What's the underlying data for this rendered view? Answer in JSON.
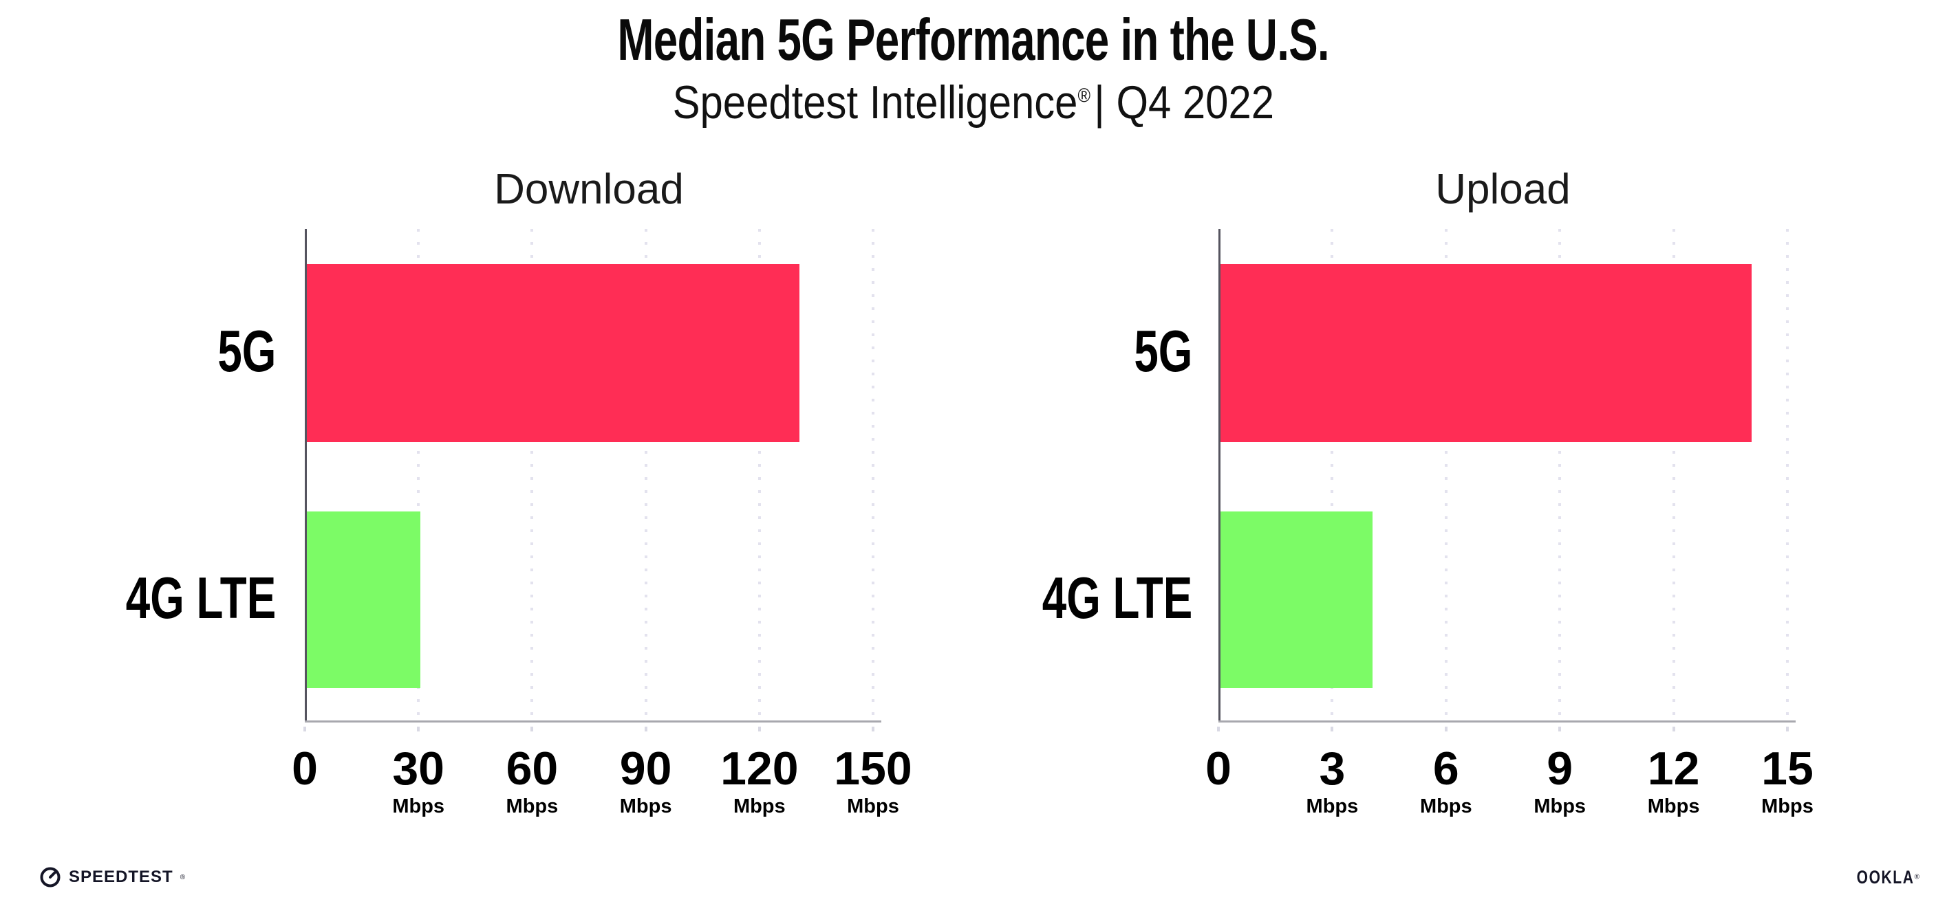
{
  "header": {
    "title": "Median 5G Performance in the U.S.",
    "subtitle_brand": "Speedtest Intelligence",
    "subtitle_reg": "®",
    "subtitle_rest": "| Q4 2022"
  },
  "chart_data": [
    {
      "type": "bar",
      "orientation": "horizontal",
      "title": "Download",
      "categories": [
        "5G",
        "4G LTE"
      ],
      "values": [
        130,
        30
      ],
      "unit": "Mbps",
      "xlim": [
        0,
        150
      ],
      "xticks": [
        0,
        30,
        60,
        90,
        120,
        150
      ],
      "grid": "dotted-vertical",
      "legend": "none"
    },
    {
      "type": "bar",
      "orientation": "horizontal",
      "title": "Upload",
      "categories": [
        "5G",
        "4G LTE"
      ],
      "values": [
        14,
        4
      ],
      "unit": "Mbps",
      "xlim": [
        0,
        15
      ],
      "xticks": [
        0,
        3,
        6,
        9,
        12,
        15
      ],
      "grid": "dotted-vertical",
      "legend": "none"
    }
  ],
  "colors": {
    "series": [
      "#FF2D55",
      "#7CFB66"
    ],
    "series_names": [
      "5G",
      "4G LTE"
    ],
    "gridline": "#E3E2EE",
    "y_axis": "#55545F",
    "x_axis": "#A8A8AE",
    "text": "#0A0A0A"
  },
  "footer": {
    "speedtest_label": "SPEEDTEST",
    "speedtest_reg": "®",
    "ookla_label": "OOKLA",
    "ookla_reg": "®"
  }
}
